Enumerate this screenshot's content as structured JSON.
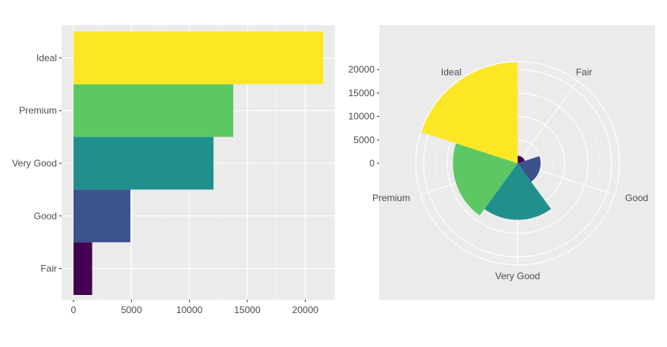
{
  "chart_data": [
    {
      "type": "bar",
      "orientation": "horizontal",
      "categories": [
        "Fair",
        "Good",
        "Very Good",
        "Premium",
        "Ideal"
      ],
      "values": [
        1610,
        4906,
        12082,
        13791,
        21551
      ],
      "colors": [
        "#440154",
        "#3B528B",
        "#21908C",
        "#5DC863",
        "#FDE725"
      ],
      "xlim": [
        0,
        22500
      ],
      "x_ticks": [
        0,
        5000,
        10000,
        15000,
        20000
      ],
      "x_tick_labels": [
        "0",
        "5000",
        "10000",
        "15000",
        "20000"
      ],
      "grid": true,
      "legend": "none",
      "background": "#EBEBEB"
    },
    {
      "type": "bar",
      "coordinate_system": "polar",
      "categories": [
        "Fair",
        "Good",
        "Very Good",
        "Premium",
        "Ideal"
      ],
      "values": [
        1610,
        4906,
        12082,
        13791,
        21551
      ],
      "colors": [
        "#440154",
        "#3B528B",
        "#21908C",
        "#5DC863",
        "#FDE725"
      ],
      "radial_ticks": [
        0,
        5000,
        10000,
        15000,
        20000
      ],
      "radial_tick_labels": [
        "0",
        "5000",
        "10000",
        "15000",
        "20000"
      ],
      "grid": true,
      "legend": "none",
      "background": "#EBEBEB"
    }
  ]
}
